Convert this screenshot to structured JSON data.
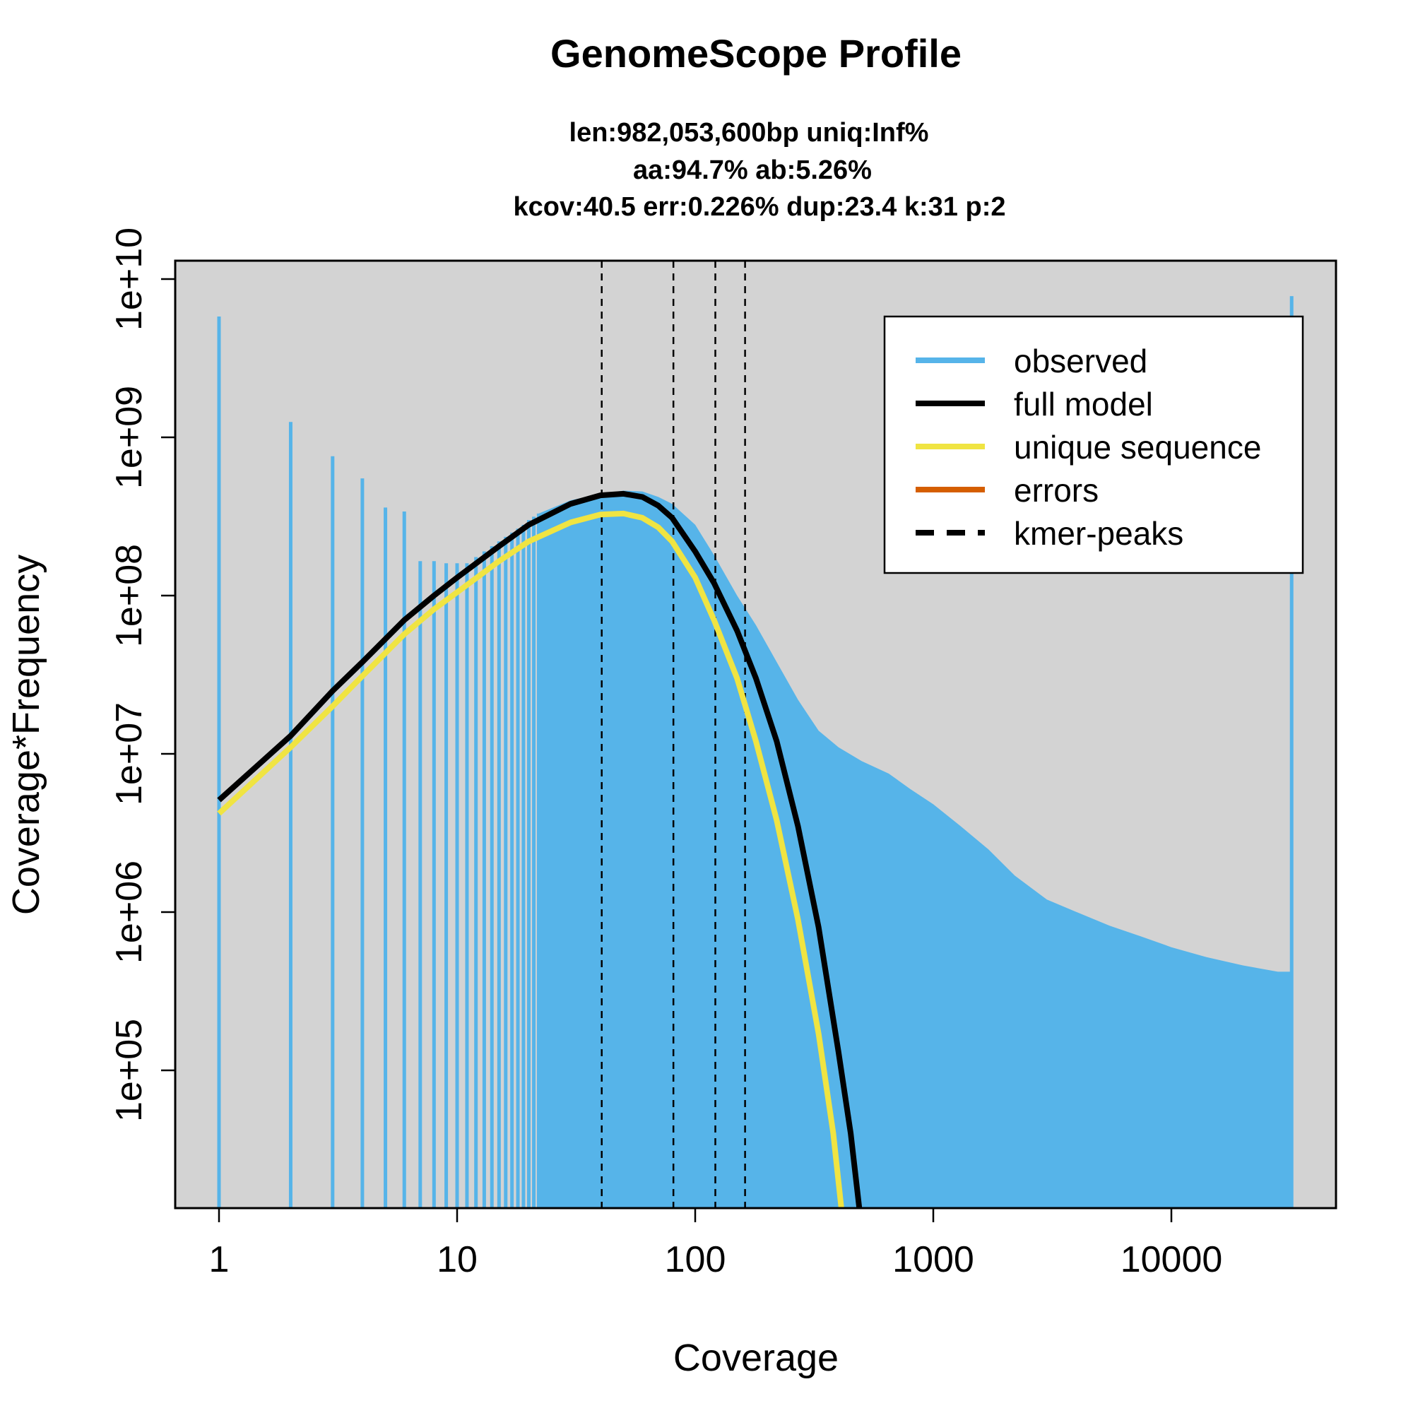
{
  "chart_data": {
    "type": "histogram",
    "title": "GenomeScope Profile",
    "subtitle_lines": [
      "len:982,053,600bp uniq:Inf%",
      "aa:94.7% ab:5.26%",
      "kcov:40.5 err:0.226%  dup:23.4  k:31 p:2"
    ],
    "xlabel": "Coverage",
    "ylabel": "Coverage*Frequency",
    "x_scale": "log",
    "y_scale": "log",
    "xlim": [
      1,
      30000
    ],
    "ylim": [
      10000,
      10000000000
    ],
    "x_ticks": [
      {
        "value": 1,
        "label": "1"
      },
      {
        "value": 10,
        "label": "10"
      },
      {
        "value": 100,
        "label": "100"
      },
      {
        "value": 1000,
        "label": "1000"
      },
      {
        "value": 10000,
        "label": "10000"
      }
    ],
    "y_ticks": [
      {
        "value": 100000,
        "label": "1e+05"
      },
      {
        "value": 1000000,
        "label": "1e+06"
      },
      {
        "value": 10000000,
        "label": "1e+07"
      },
      {
        "value": 100000000,
        "label": "1e+08"
      },
      {
        "value": 1000000000,
        "label": "1e+09"
      },
      {
        "value": 10000000000,
        "label": "1e+10"
      }
    ],
    "background": "#d3d3d3",
    "grid": false,
    "legend_position": "top-right",
    "legend": [
      {
        "label": "observed",
        "color": "#56b4e9",
        "style": "solid"
      },
      {
        "label": "full model",
        "color": "#000000",
        "style": "solid"
      },
      {
        "label": "unique sequence",
        "color": "#f0e442",
        "style": "solid"
      },
      {
        "label": "errors",
        "color": "#d55e00",
        "style": "solid"
      },
      {
        "label": "kmer-peaks",
        "color": "#000000",
        "style": "dashed"
      }
    ],
    "kmer_peaks": [
      40.5,
      81,
      121.5,
      162
    ],
    "observed_discrete": [
      {
        "x": 1,
        "y": 5800000000
      },
      {
        "x": 2,
        "y": 1250000000
      },
      {
        "x": 3,
        "y": 760000000
      },
      {
        "x": 4,
        "y": 550000000
      },
      {
        "x": 5,
        "y": 360000000
      },
      {
        "x": 6,
        "y": 340000000
      },
      {
        "x": 7,
        "y": 165000000
      },
      {
        "x": 8,
        "y": 165000000
      },
      {
        "x": 9,
        "y": 160000000
      },
      {
        "x": 10,
        "y": 160000000
      },
      {
        "x": 11,
        "y": 160000000
      },
      {
        "x": 12,
        "y": 175000000
      },
      {
        "x": 13,
        "y": 190000000
      },
      {
        "x": 14,
        "y": 205000000
      },
      {
        "x": 15,
        "y": 220000000
      },
      {
        "x": 16,
        "y": 235000000
      },
      {
        "x": 17,
        "y": 250000000
      },
      {
        "x": 18,
        "y": 265000000
      },
      {
        "x": 19,
        "y": 280000000
      },
      {
        "x": 20,
        "y": 300000000
      },
      {
        "x": 21,
        "y": 315000000
      },
      {
        "x": 22,
        "y": 330000000
      }
    ],
    "observed_envelope": [
      {
        "x": 22,
        "y": 330000000
      },
      {
        "x": 30,
        "y": 400000000
      },
      {
        "x": 40,
        "y": 440000000
      },
      {
        "x": 50,
        "y": 460000000
      },
      {
        "x": 60,
        "y": 455000000
      },
      {
        "x": 70,
        "y": 420000000
      },
      {
        "x": 80,
        "y": 380000000
      },
      {
        "x": 100,
        "y": 280000000
      },
      {
        "x": 120,
        "y": 180000000
      },
      {
        "x": 150,
        "y": 100000000
      },
      {
        "x": 180,
        "y": 65000000
      },
      {
        "x": 220,
        "y": 38000000
      },
      {
        "x": 270,
        "y": 22000000
      },
      {
        "x": 330,
        "y": 14000000
      },
      {
        "x": 400,
        "y": 11000000
      },
      {
        "x": 500,
        "y": 9000000
      },
      {
        "x": 650,
        "y": 7500000
      },
      {
        "x": 800,
        "y": 6000000
      },
      {
        "x": 1000,
        "y": 4800000
      },
      {
        "x": 1300,
        "y": 3500000
      },
      {
        "x": 1700,
        "y": 2500000
      },
      {
        "x": 2200,
        "y": 1700000
      },
      {
        "x": 3000,
        "y": 1200000
      },
      {
        "x": 4000,
        "y": 1000000
      },
      {
        "x": 5500,
        "y": 820000
      },
      {
        "x": 7500,
        "y": 700000
      },
      {
        "x": 10000,
        "y": 600000
      },
      {
        "x": 14000,
        "y": 520000
      },
      {
        "x": 20000,
        "y": 460000
      },
      {
        "x": 28000,
        "y": 420000
      },
      {
        "x": 32000,
        "y": 420000
      }
    ],
    "observed_last_spike": {
      "x": 32000,
      "y": 7800000000
    },
    "full_model": [
      {
        "x": 1,
        "y": 5100000
      },
      {
        "x": 2,
        "y": 13000000
      },
      {
        "x": 3,
        "y": 25000000
      },
      {
        "x": 4,
        "y": 38000000
      },
      {
        "x": 6,
        "y": 70000000
      },
      {
        "x": 8,
        "y": 100000000
      },
      {
        "x": 10,
        "y": 130000000
      },
      {
        "x": 15,
        "y": 205000000
      },
      {
        "x": 20,
        "y": 280000000
      },
      {
        "x": 30,
        "y": 380000000
      },
      {
        "x": 40,
        "y": 430000000
      },
      {
        "x": 50,
        "y": 440000000
      },
      {
        "x": 60,
        "y": 420000000
      },
      {
        "x": 70,
        "y": 370000000
      },
      {
        "x": 80,
        "y": 310000000
      },
      {
        "x": 100,
        "y": 190000000
      },
      {
        "x": 120,
        "y": 120000000
      },
      {
        "x": 150,
        "y": 60000000
      },
      {
        "x": 180,
        "y": 30000000
      },
      {
        "x": 220,
        "y": 12000000
      },
      {
        "x": 270,
        "y": 3500000
      },
      {
        "x": 330,
        "y": 800000
      },
      {
        "x": 400,
        "y": 130000
      },
      {
        "x": 450,
        "y": 40000
      },
      {
        "x": 500,
        "y": 10000
      }
    ],
    "unique_sequence": [
      {
        "x": 1,
        "y": 4200000
      },
      {
        "x": 2,
        "y": 11000000
      },
      {
        "x": 3,
        "y": 20000000
      },
      {
        "x": 4,
        "y": 31000000
      },
      {
        "x": 6,
        "y": 57000000
      },
      {
        "x": 8,
        "y": 82000000
      },
      {
        "x": 10,
        "y": 105000000
      },
      {
        "x": 15,
        "y": 165000000
      },
      {
        "x": 20,
        "y": 220000000
      },
      {
        "x": 30,
        "y": 290000000
      },
      {
        "x": 40,
        "y": 325000000
      },
      {
        "x": 50,
        "y": 330000000
      },
      {
        "x": 60,
        "y": 310000000
      },
      {
        "x": 70,
        "y": 270000000
      },
      {
        "x": 80,
        "y": 220000000
      },
      {
        "x": 100,
        "y": 130000000
      },
      {
        "x": 120,
        "y": 70000000
      },
      {
        "x": 150,
        "y": 30000000
      },
      {
        "x": 180,
        "y": 12000000
      },
      {
        "x": 220,
        "y": 3800000
      },
      {
        "x": 270,
        "y": 900000
      },
      {
        "x": 330,
        "y": 170000
      },
      {
        "x": 380,
        "y": 40000
      },
      {
        "x": 420,
        "y": 10000
      }
    ]
  }
}
